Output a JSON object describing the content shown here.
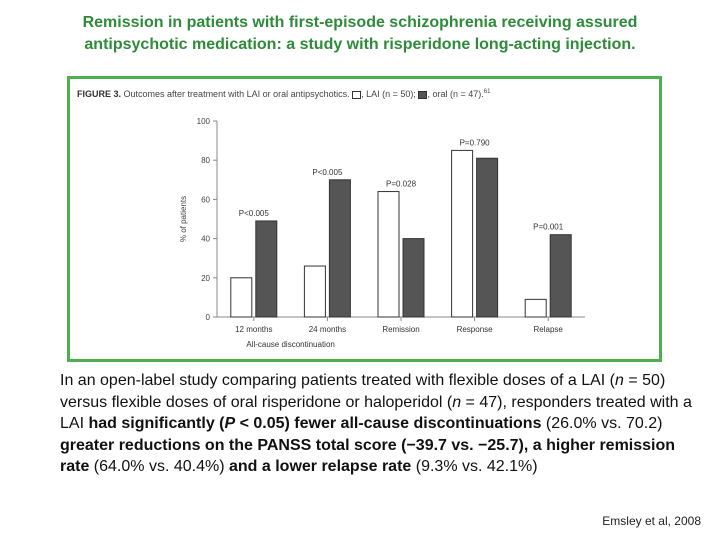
{
  "slide": {
    "title_line1": "Remission in patients with first-episode schizophrenia receiving assured",
    "title_line2": "antipsychotic medication: a study with risperidone long-acting injection.",
    "citation": "Emsley et al, 2008"
  },
  "figure": {
    "label": "FIGURE 3.",
    "caption": "Outcomes after treatment with LAI or oral antipsychotics.",
    "legend_lai": ", LAI (n = 50);",
    "legend_oral": ", oral (n = 47).",
    "legend_ref": "61"
  },
  "chart_data": {
    "type": "bar",
    "categories": [
      "12 months",
      "24 months",
      "Remission",
      "Response",
      "Relapse"
    ],
    "group_label": "All-cause discontinuation",
    "series": [
      {
        "name": "LAI (n = 50)",
        "values": [
          20,
          26,
          64,
          85,
          9
        ]
      },
      {
        "name": "oral (n = 47)",
        "values": [
          49,
          70,
          40,
          81,
          42
        ]
      }
    ],
    "p_values": [
      "P<0.005",
      "P<0.005",
      "P=0.028",
      "P=0.790",
      "P=0.001"
    ],
    "ylabel": "% of patients",
    "ylim": [
      0,
      100
    ],
    "yticks": [
      0,
      20,
      40,
      60,
      80,
      100
    ],
    "colors": {
      "lai": "#ffffff",
      "oral": "#555555",
      "outline": "#333333",
      "axis": "#888888"
    }
  },
  "text": {
    "p1": "In an open-label study comparing patients treated with flexible doses of a LAI (",
    "n1": "n",
    "p2": " = 50) versus flexible doses of oral risperidone or haloperidol (",
    "n2": "n",
    "p3": " = 47), responders treated with a LAI ",
    "b1": "had significantly (",
    "pval": "P",
    "b2": " < 0.05) fewer all-cause discontinuations",
    "p4": " (26.0% vs. 70.2) ",
    "b3": "greater reductions on the PANSS total score",
    "b4": " (−39.7 vs. −25.7), a higher remission rate",
    "p5": " (64.0% vs. 40.4%) ",
    "b5": "and a lower relapse rate",
    "p6": " (9.3% vs. 42.1%)"
  }
}
